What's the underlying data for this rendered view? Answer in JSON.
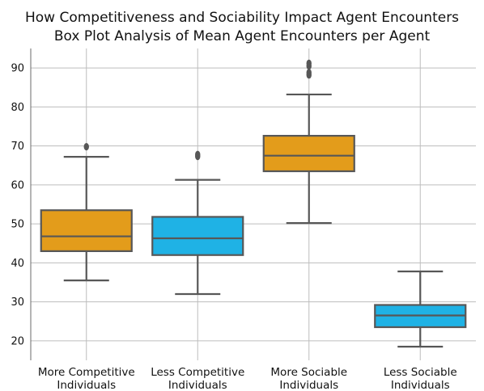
{
  "chart_data": {
    "type": "box",
    "title": "How Competitiveness and Sociability Impact Agent Encounters",
    "subtitle": "Box Plot Analysis of Mean Agent Encounters per Agent",
    "xlabel": "",
    "ylabel": "",
    "ylim": [
      15,
      95
    ],
    "yticks": [
      20,
      30,
      40,
      50,
      60,
      70,
      80,
      90
    ],
    "grid": true,
    "categories": [
      [
        "More Competitive",
        "Individuals"
      ],
      [
        "Less Competitive",
        "Individuals"
      ],
      [
        "More Sociable",
        "Individuals"
      ],
      [
        "Less Sociable",
        "Individuals"
      ]
    ],
    "boxes": [
      {
        "whisker_low": 35.5,
        "q1": 43,
        "median": 46.8,
        "q3": 53.5,
        "whisker_high": 67.2,
        "outliers": [
          69.8
        ],
        "color": "#E39C1B"
      },
      {
        "whisker_low": 32,
        "q1": 42,
        "median": 46.3,
        "q3": 51.8,
        "whisker_high": 61.3,
        "outliers": [
          67.3,
          67.8
        ],
        "color": "#1FB2E5"
      },
      {
        "whisker_low": 50.2,
        "q1": 63.5,
        "median": 67.5,
        "q3": 72.6,
        "whisker_high": 83.2,
        "outliers": [
          88.2,
          88.8,
          90.5,
          91.2
        ],
        "color": "#E39C1B"
      },
      {
        "whisker_low": 18.5,
        "q1": 23.5,
        "median": 26.5,
        "q3": 29.2,
        "whisker_high": 37.8,
        "outliers": [],
        "color": "#1FB2E5"
      }
    ]
  }
}
